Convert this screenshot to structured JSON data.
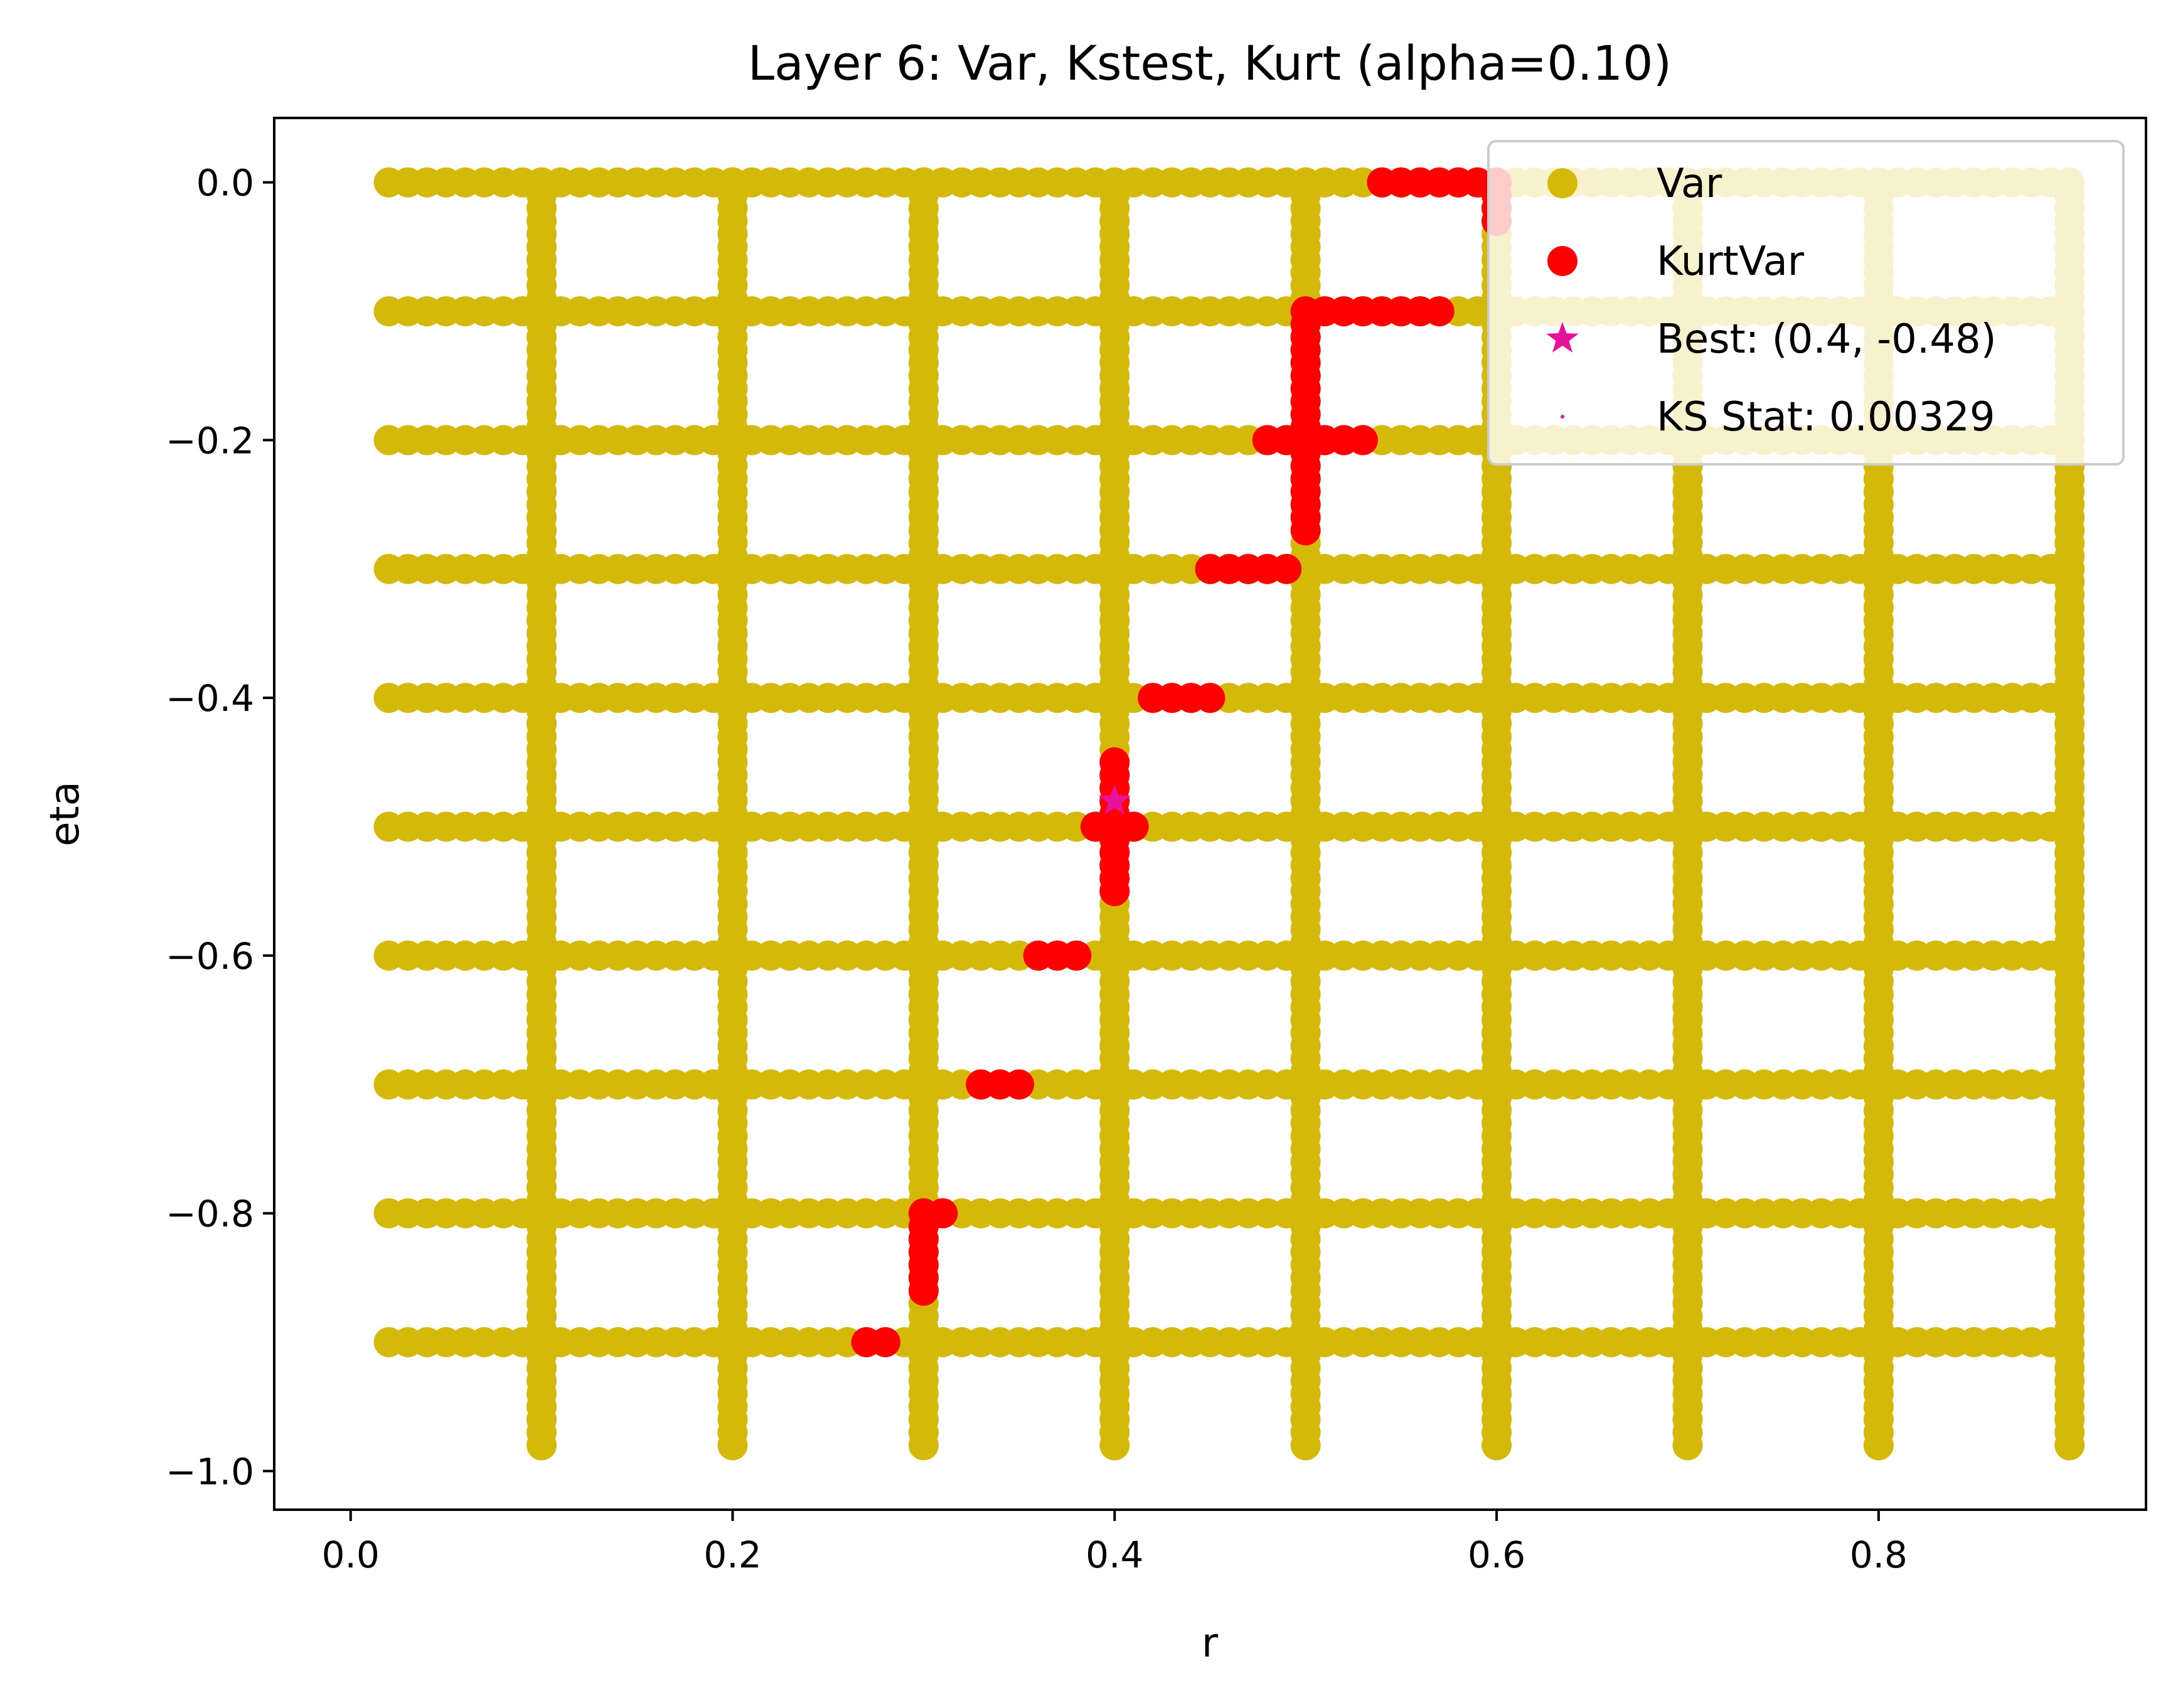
{
  "chart_data": {
    "type": "scatter",
    "title": "Layer 6: Var, Kstest, Kurt (alpha=0.10)",
    "xlabel": "r",
    "ylabel": "eta",
    "xlim": [
      -0.04,
      0.94
    ],
    "ylim": [
      -1.03,
      0.05
    ],
    "xticks": [
      {
        "value": 0.0,
        "label": "0.0"
      },
      {
        "value": 0.2,
        "label": "0.2"
      },
      {
        "value": 0.4,
        "label": "0.4"
      },
      {
        "value": 0.6,
        "label": "0.6"
      },
      {
        "value": 0.8,
        "label": "0.8"
      }
    ],
    "yticks": [
      {
        "value": 0.0,
        "label": "0.0"
      },
      {
        "value": -0.2,
        "label": "−0.2"
      },
      {
        "value": -0.4,
        "label": "−0.4"
      },
      {
        "value": -0.6,
        "label": "−0.6"
      },
      {
        "value": -0.8,
        "label": "−0.8"
      },
      {
        "value": -1.0,
        "label": "−1.0"
      }
    ],
    "grid": false,
    "legend_position": "top-right",
    "series": [
      {
        "name": "Var",
        "marker": "circle",
        "color": "#d4b80a",
        "horizontal_lines": {
          "eta": [
            0.0,
            -0.1,
            -0.2,
            -0.3,
            -0.4,
            -0.5,
            -0.6,
            -0.7,
            -0.8,
            -0.9
          ],
          "r_start": 0.02,
          "r_end": 0.9,
          "r_step": 0.01
        },
        "vertical_lines": {
          "r": [
            0.1,
            0.2,
            0.3,
            0.4,
            0.5,
            0.6,
            0.7,
            0.8,
            0.9
          ],
          "eta_start": -0.98,
          "eta_end": 0.0,
          "eta_step": 0.01
        }
      },
      {
        "name": "KurtVar",
        "marker": "circle",
        "color": "#ff0000",
        "segments": [
          {
            "axis": "r",
            "eta": 0.0,
            "from": 0.54,
            "to": 0.6
          },
          {
            "axis": "eta",
            "r": 0.6,
            "from": -0.03,
            "to": 0.0
          },
          {
            "axis": "r",
            "eta": -0.1,
            "from": 0.5,
            "to": 0.57
          },
          {
            "axis": "eta",
            "r": 0.5,
            "from": -0.27,
            "to": -0.11
          },
          {
            "axis": "r",
            "eta": -0.2,
            "from": 0.48,
            "to": 0.53
          },
          {
            "axis": "r",
            "eta": -0.3,
            "from": 0.45,
            "to": 0.49
          },
          {
            "axis": "r",
            "eta": -0.4,
            "from": 0.42,
            "to": 0.45
          },
          {
            "axis": "eta",
            "r": 0.4,
            "from": -0.55,
            "to": -0.45
          },
          {
            "axis": "r",
            "eta": -0.5,
            "from": 0.39,
            "to": 0.41
          },
          {
            "axis": "r",
            "eta": -0.6,
            "from": 0.36,
            "to": 0.38
          },
          {
            "axis": "r",
            "eta": -0.7,
            "from": 0.33,
            "to": 0.35
          },
          {
            "axis": "eta",
            "r": 0.3,
            "from": -0.86,
            "to": -0.81
          },
          {
            "axis": "r",
            "eta": -0.8,
            "from": 0.3,
            "to": 0.31
          },
          {
            "axis": "r",
            "eta": -0.9,
            "from": 0.27,
            "to": 0.28
          }
        ]
      },
      {
        "name": "Best: (0.4, -0.48)",
        "marker": "star",
        "color": "#e8119a",
        "points": [
          {
            "r": 0.4,
            "eta": -0.48
          }
        ]
      },
      {
        "name": "KS Stat: 0.00329",
        "marker": "point",
        "color": "#e8119a",
        "points": []
      }
    ]
  }
}
